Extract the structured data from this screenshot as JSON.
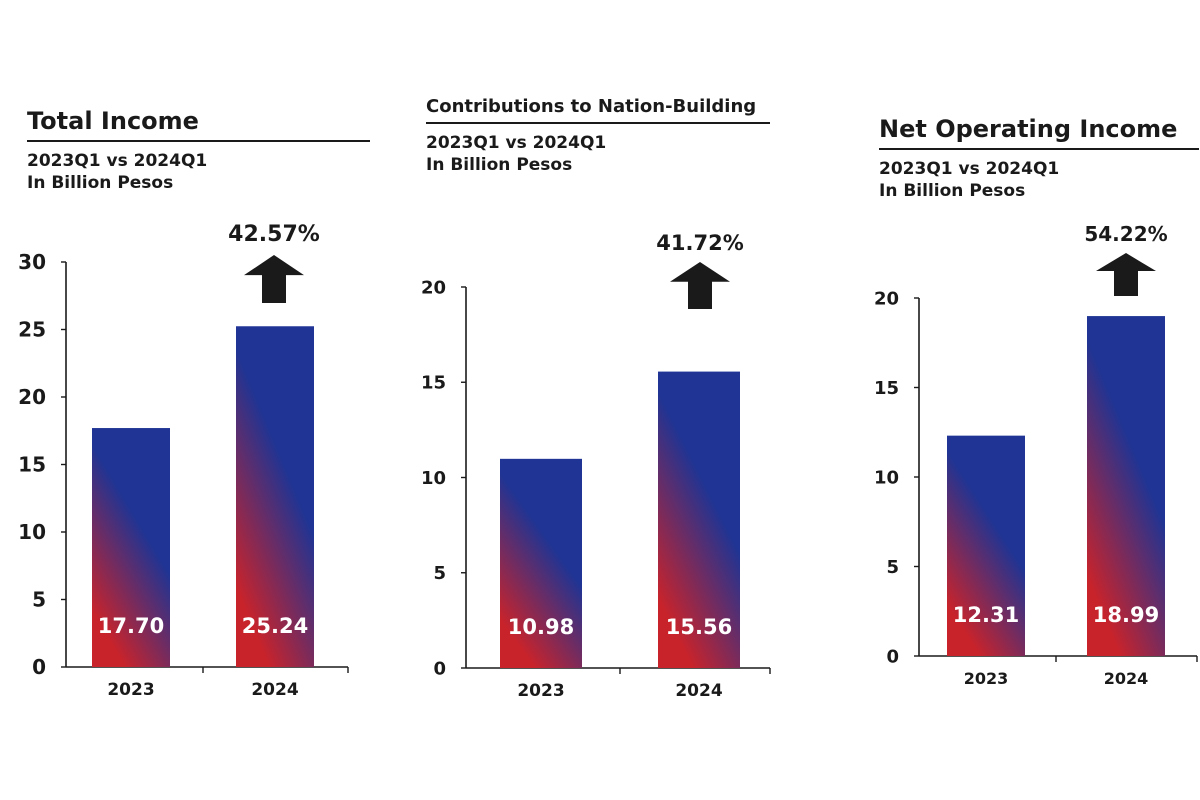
{
  "chart_data": [
    {
      "type": "bar",
      "title": "Total Income",
      "subtitle": [
        "2023Q1 vs 2024Q1",
        "In Billion Pesos"
      ],
      "categories": [
        "2023",
        "2024"
      ],
      "values": [
        17.7,
        25.24
      ],
      "value_labels": [
        "17.70",
        "25.24"
      ],
      "yticks": [
        0,
        5,
        10,
        15,
        20,
        25,
        30
      ],
      "ylim": [
        0,
        30
      ],
      "change_label": "42.57%",
      "grid": false
    },
    {
      "type": "bar",
      "title": "Contributions to Nation-Building",
      "subtitle": [
        "2023Q1 vs 2024Q1",
        "In Billion Pesos"
      ],
      "categories": [
        "2023",
        "2024"
      ],
      "values": [
        10.98,
        15.56
      ],
      "value_labels": [
        "10.98",
        "15.56"
      ],
      "yticks": [
        0,
        5,
        10,
        15,
        20
      ],
      "ylim": [
        0,
        20
      ],
      "change_label": "41.72%",
      "grid": false
    },
    {
      "type": "bar",
      "title": "Net Operating Income",
      "subtitle": [
        "2023Q1 vs 2024Q1",
        "In Billion Pesos"
      ],
      "categories": [
        "2023",
        "2024"
      ],
      "values": [
        12.31,
        18.99
      ],
      "value_labels": [
        "12.31",
        "18.99"
      ],
      "yticks": [
        0,
        5,
        10,
        15,
        20
      ],
      "ylim": [
        0,
        20
      ],
      "change_label": "54.22%",
      "grid": false
    }
  ],
  "colors": {
    "bar_top": "#1f3494",
    "bar_bottom": "#c8232b",
    "ink": "#1a1a1a"
  }
}
